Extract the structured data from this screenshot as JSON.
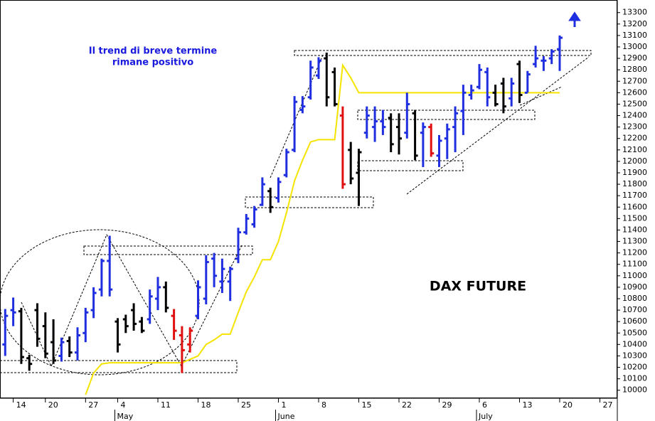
{
  "chart_data": {
    "type": "ohlc",
    "title": "DAX FUTURE",
    "annotations": [
      "Il trend di breve termine",
      "rimane positivo"
    ],
    "categories": [
      null,
      null,
      "14",
      null,
      null,
      null,
      "20",
      null,
      null,
      null,
      null,
      "27",
      null,
      null,
      null,
      "4",
      null,
      null,
      null,
      null,
      "11",
      null,
      null,
      null,
      null,
      "18",
      null,
      null,
      null,
      null,
      "25",
      null,
      null,
      null,
      null,
      "1",
      null,
      null,
      null,
      null,
      "8",
      null,
      null,
      null,
      null,
      "15",
      null,
      null,
      null,
      null,
      "22",
      null,
      null,
      null,
      null,
      "29",
      null,
      null,
      null,
      null,
      "6",
      null,
      null,
      null,
      null,
      "13",
      null,
      null,
      null,
      null,
      "20",
      null,
      null,
      null,
      null,
      "27"
    ],
    "months": [
      null,
      null,
      null,
      null,
      null,
      null,
      null,
      null,
      null,
      null,
      null,
      null,
      null,
      null,
      null,
      "May",
      null,
      null,
      null,
      null,
      null,
      null,
      null,
      null,
      null,
      null,
      null,
      null,
      null,
      null,
      null,
      null,
      null,
      null,
      null,
      "June",
      null,
      null,
      null,
      null,
      null,
      null,
      null,
      null,
      null,
      null,
      null,
      null,
      null,
      null,
      null,
      null,
      null,
      null,
      null,
      null,
      null,
      null,
      null,
      null,
      "July",
      null,
      null,
      null,
      null,
      null,
      null,
      null,
      null,
      null,
      null,
      null,
      null,
      null,
      null,
      null
    ],
    "open": [
      null,
      10400,
      10700,
      10690,
      10280,
      10700,
      10560,
      10420,
      10300,
      10430,
      10330,
      10500,
      10700,
      10880,
      11130,
      10600,
      10620,
      10700,
      10600,
      10620,
      10800,
      10900,
      10650,
      10480,
      10400,
      10650,
      10800,
      11150,
      10950,
      10950,
      11150,
      11380,
      11450,
      11620,
      11740,
      11680,
      11880,
      12100,
      12450,
      12560,
      12750,
      12900,
      12780,
      12400,
      12100,
      11900,
      12250,
      12300,
      12350,
      12380,
      12300,
      12250,
      12420,
      12250,
      12300,
      12050,
      12200,
      12300,
      12440,
      12580,
      12650,
      12780,
      12600,
      12680,
      12550,
      12850,
      12600,
      12850,
      12880,
      12900,
      12980,
      null,
      null,
      null,
      null,
      null
    ],
    "high": [
      null,
      10710,
      10810,
      10720,
      10310,
      10760,
      10680,
      10620,
      10460,
      10470,
      10550,
      10720,
      10900,
      11150,
      11350,
      10630,
      10660,
      10760,
      10640,
      10880,
      10990,
      10950,
      10710,
      10560,
      10550,
      10960,
      11180,
      11200,
      11150,
      11080,
      11420,
      11540,
      11610,
      11860,
      11770,
      11860,
      12110,
      12570,
      12570,
      12880,
      12910,
      12950,
      12820,
      12480,
      12170,
      12110,
      12480,
      12480,
      12450,
      12420,
      12420,
      12600,
      12450,
      12340,
      12330,
      12230,
      12330,
      12480,
      12670,
      12670,
      12850,
      12820,
      12670,
      12730,
      12730,
      12880,
      12790,
      13010,
      12920,
      12980,
      13100,
      null,
      null,
      null,
      null,
      null
    ],
    "low": [
      null,
      10300,
      10560,
      10230,
      10170,
      10380,
      10280,
      10230,
      10250,
      10290,
      10260,
      10420,
      10630,
      10820,
      10820,
      10330,
      10500,
      10520,
      10500,
      10580,
      10700,
      10680,
      10440,
      10150,
      10330,
      10620,
      10750,
      10900,
      10850,
      10780,
      11110,
      11360,
      11420,
      11610,
      11550,
      11640,
      11860,
      12080,
      12420,
      12540,
      12720,
      12480,
      12480,
      11760,
      11800,
      11610,
      12200,
      12170,
      12230,
      12080,
      12060,
      12200,
      12010,
      11950,
      12040,
      11950,
      12020,
      12080,
      12230,
      12540,
      12630,
      12480,
      12480,
      12420,
      12480,
      12510,
      12600,
      12820,
      12790,
      12850,
      12790,
      null,
      null,
      null,
      null,
      null
    ],
    "close": [
      null,
      10650,
      10680,
      10290,
      10230,
      10450,
      10320,
      10260,
      10420,
      10330,
      10480,
      10680,
      10850,
      11130,
      10880,
      10400,
      10560,
      10580,
      10520,
      10820,
      10900,
      10720,
      10520,
      10350,
      10520,
      10900,
      11120,
      11000,
      11060,
      11060,
      11380,
      11500,
      11580,
      11800,
      11600,
      11820,
      12080,
      12520,
      12480,
      12820,
      12880,
      12560,
      12500,
      11800,
      11850,
      12080,
      12400,
      12350,
      12300,
      12150,
      12200,
      12500,
      12050,
      12300,
      12070,
      12180,
      12280,
      12420,
      12600,
      12620,
      12800,
      12560,
      12500,
      12480,
      12680,
      12580,
      12760,
      12900,
      12880,
      12960,
      13080,
      null,
      null,
      null,
      null,
      null
    ],
    "bar_colors": [
      null,
      "#1f2fe0",
      "#1f2fe0",
      "#000000",
      "#000000",
      "#000000",
      "#000000",
      "#000000",
      "#1f2fe0",
      "#000000",
      "#1f2fe0",
      "#1f2fe0",
      "#1f2fe0",
      "#1f2fe0",
      "#1f2fe0",
      "#000000",
      "#000000",
      "#000000",
      "#000000",
      "#1f2fe0",
      "#1f2fe0",
      "#000000",
      "#e01010",
      "#e01010",
      "#e01010",
      "#1f2fe0",
      "#1f2fe0",
      "#1f2fe0",
      "#1f2fe0",
      "#1f2fe0",
      "#1f2fe0",
      "#1f2fe0",
      "#1f2fe0",
      "#1f2fe0",
      "#000000",
      "#1f2fe0",
      "#1f2fe0",
      "#1f2fe0",
      "#1f2fe0",
      "#1f2fe0",
      "#1f2fe0",
      "#000000",
      "#000000",
      "#e01010",
      "#000000",
      "#000000",
      "#1f2fe0",
      "#1f2fe0",
      "#1f2fe0",
      "#000000",
      "#000000",
      "#1f2fe0",
      "#000000",
      "#1f2fe0",
      "#e01010",
      "#1f2fe0",
      "#1f2fe0",
      "#1f2fe0",
      "#1f2fe0",
      "#1f2fe0",
      "#1f2fe0",
      "#1f2fe0",
      "#000000",
      "#000000",
      "#1f2fe0",
      "#000000",
      "#1f2fe0",
      "#1f2fe0",
      "#1f2fe0",
      "#1f2fe0",
      "#1f2fe0",
      null,
      null,
      null,
      null,
      null
    ],
    "overlay_line": {
      "color": "#f5e400",
      "values": [
        null,
        null,
        null,
        null,
        null,
        null,
        null,
        null,
        null,
        null,
        null,
        9960,
        10150,
        10230,
        10240,
        10240,
        10240,
        10240,
        10240,
        10240,
        10240,
        10240,
        10240,
        10240,
        10270,
        10300,
        10400,
        10440,
        10490,
        10490,
        10680,
        10860,
        10990,
        11140,
        11140,
        11300,
        11550,
        11830,
        12010,
        12170,
        12190,
        12190,
        12190,
        12840,
        12730,
        12600,
        12600,
        12600,
        12600,
        12600,
        12600,
        12600,
        12600,
        12600,
        12600,
        12600,
        12600,
        12600,
        12600,
        12600,
        12600,
        12600,
        12600,
        12600,
        12600,
        12600,
        12600,
        12600,
        12600,
        12600,
        12600,
        null,
        null,
        null,
        null,
        null
      ]
    },
    "ylim": [
      9930,
      13410
    ],
    "yticks": [
      10000,
      10100,
      10200,
      10300,
      10400,
      10500,
      10600,
      10700,
      10800,
      10900,
      11000,
      11100,
      11200,
      11300,
      11400,
      11500,
      11600,
      11700,
      11800,
      11900,
      12000,
      12100,
      12200,
      12300,
      12400,
      12500,
      12600,
      12700,
      12800,
      12900,
      13000,
      13100,
      13200,
      13300
    ]
  }
}
